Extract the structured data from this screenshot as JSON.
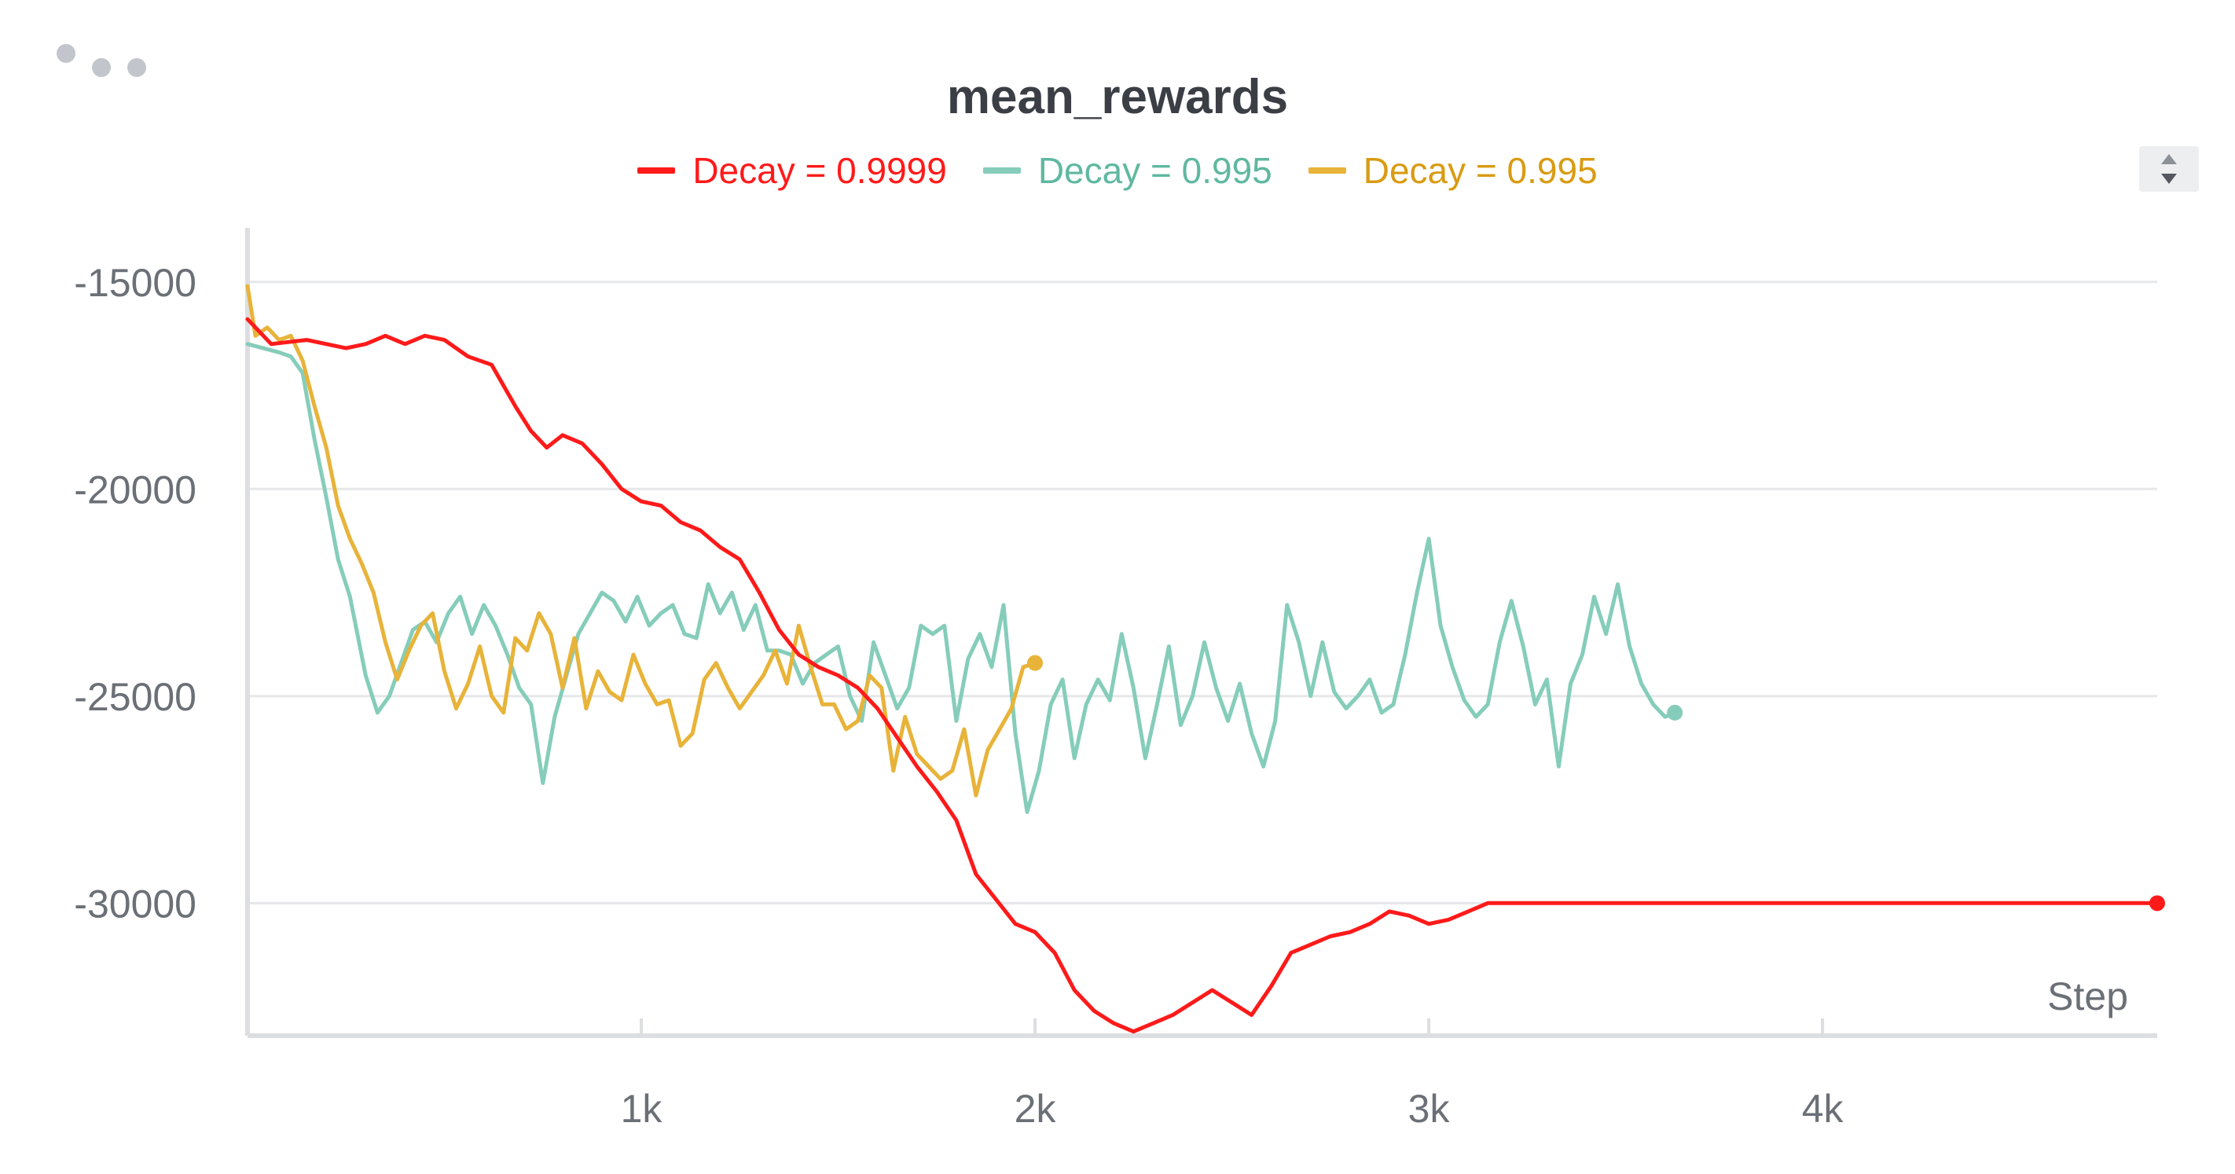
{
  "panel": {
    "title": "mean_rewards",
    "menu_icon": "more-dots-icon",
    "sort_icon": "sort-arrows-icon"
  },
  "chart_data": {
    "type": "line",
    "title": "mean_rewards",
    "xlabel": "Step",
    "ylabel": "",
    "xlim": [
      0,
      4850
    ],
    "ylim": [
      -33200,
      -13600
    ],
    "xticks": [
      1000,
      2000,
      3000,
      4000
    ],
    "xtick_labels": [
      "1k",
      "2k",
      "3k",
      "4k"
    ],
    "yticks": [
      -15000,
      -20000,
      -25000,
      -30000
    ],
    "ytick_labels": [
      "-15000",
      "-20000",
      "-25000",
      "-30000"
    ],
    "grid": true,
    "legend_position": "top-center",
    "series": [
      {
        "name": "Decay = 0.9999",
        "color": "#ff1a1a",
        "x": [
          0,
          60,
          150,
          250,
          300,
          350,
          400,
          450,
          500,
          560,
          620,
          680,
          720,
          760,
          800,
          850,
          900,
          950,
          1000,
          1050,
          1100,
          1150,
          1200,
          1250,
          1300,
          1350,
          1400,
          1450,
          1500,
          1550,
          1600,
          1650,
          1700,
          1750,
          1800,
          1850,
          1900,
          1950,
          2000,
          2050,
          2100,
          2150,
          2200,
          2250,
          2300,
          2350,
          2400,
          2450,
          2500,
          2550,
          2600,
          2650,
          2700,
          2750,
          2800,
          2850,
          2900,
          2950,
          3000,
          3050,
          3100,
          3150,
          3200,
          3300,
          3500,
          4000,
          4500,
          4850
        ],
        "y": [
          -15900,
          -16500,
          -16400,
          -16600,
          -16500,
          -16300,
          -16500,
          -16300,
          -16400,
          -16800,
          -17000,
          -18000,
          -18600,
          -19000,
          -18700,
          -18900,
          -19400,
          -20000,
          -20300,
          -20400,
          -20800,
          -21000,
          -21400,
          -21700,
          -22500,
          -23400,
          -24000,
          -24300,
          -24500,
          -24800,
          -25300,
          -26000,
          -26700,
          -27300,
          -28000,
          -29300,
          -29900,
          -30500,
          -30700,
          -31200,
          -32100,
          -32600,
          -32900,
          -33100,
          -32900,
          -32700,
          -32400,
          -32100,
          -32400,
          -32700,
          -32000,
          -31200,
          -31000,
          -30800,
          -30700,
          -30500,
          -30200,
          -30300,
          -30500,
          -30400,
          -30200,
          -30000,
          -30000,
          -30000,
          -30000,
          -30000,
          -30000,
          -30000
        ]
      },
      {
        "name": "Decay = 0.995",
        "color": "#85cdba",
        "x": [
          0,
          40,
          80,
          110,
          140,
          170,
          200,
          230,
          260,
          300,
          330,
          360,
          390,
          420,
          450,
          480,
          510,
          540,
          570,
          600,
          630,
          660,
          690,
          720,
          750,
          780,
          810,
          840,
          870,
          900,
          930,
          960,
          990,
          1020,
          1050,
          1080,
          1110,
          1140,
          1170,
          1200,
          1230,
          1260,
          1290,
          1320,
          1350,
          1380,
          1410,
          1440,
          1470,
          1500,
          1530,
          1560,
          1590,
          1620,
          1650,
          1680,
          1710,
          1740,
          1770,
          1800,
          1830,
          1860,
          1890,
          1920,
          1950,
          1980,
          2010,
          2040,
          2070,
          2100,
          2130,
          2160,
          2190,
          2220,
          2250,
          2280,
          2310,
          2340,
          2370,
          2400,
          2430,
          2460,
          2490,
          2520,
          2550,
          2580,
          2610,
          2640,
          2670,
          2700,
          2730,
          2760,
          2790,
          2820,
          2850,
          2880,
          2910,
          2940,
          2970,
          3000,
          3030,
          3060,
          3090,
          3120,
          3150,
          3180,
          3210,
          3240,
          3270,
          3300,
          3330,
          3360,
          3390,
          3420,
          3450,
          3480,
          3510,
          3540,
          3570,
          3600,
          3625
        ],
        "y": [
          -16500,
          -16600,
          -16700,
          -16800,
          -17200,
          -18800,
          -20200,
          -21700,
          -22600,
          -24500,
          -25400,
          -25000,
          -24200,
          -23400,
          -23200,
          -23700,
          -23000,
          -22600,
          -23500,
          -22800,
          -23300,
          -24000,
          -24800,
          -25200,
          -27100,
          -25500,
          -24500,
          -23500,
          -23000,
          -22500,
          -22700,
          -23200,
          -22600,
          -23300,
          -23000,
          -22800,
          -23500,
          -23600,
          -22300,
          -23000,
          -22500,
          -23400,
          -22800,
          -23900,
          -23900,
          -24000,
          -24700,
          -24200,
          -24000,
          -23800,
          -25000,
          -25600,
          -23700,
          -24500,
          -25300,
          -24800,
          -23300,
          -23500,
          -23300,
          -25600,
          -24100,
          -23500,
          -24300,
          -22800,
          -25900,
          -27800,
          -26800,
          -25200,
          -24600,
          -26500,
          -25200,
          -24600,
          -25100,
          -23500,
          -24800,
          -26500,
          -25200,
          -23800,
          -25700,
          -25000,
          -23700,
          -24800,
          -25600,
          -24700,
          -25900,
          -26700,
          -25600,
          -22800,
          -23700,
          -25000,
          -23700,
          -24900,
          -25300,
          -25000,
          -24600,
          -25400,
          -25200,
          -24000,
          -22500,
          -21200,
          -23300,
          -24300,
          -25100,
          -25500,
          -25200,
          -23700,
          -22700,
          -23800,
          -25200,
          -24600,
          -26700,
          -24700,
          -24000,
          -22600,
          -23500,
          -22300,
          -23800,
          -24700,
          -25200,
          -25500,
          -25400
        ]
      },
      {
        "name": "Decay = 0.995",
        "color": "#e8b339",
        "x": [
          0,
          20,
          50,
          80,
          110,
          140,
          170,
          200,
          230,
          260,
          290,
          320,
          350,
          380,
          410,
          440,
          470,
          500,
          530,
          560,
          590,
          620,
          650,
          680,
          710,
          740,
          770,
          800,
          830,
          860,
          890,
          920,
          950,
          980,
          1010,
          1040,
          1070,
          1100,
          1130,
          1160,
          1190,
          1220,
          1250,
          1280,
          1310,
          1340,
          1370,
          1400,
          1430,
          1460,
          1490,
          1520,
          1550,
          1580,
          1610,
          1640,
          1670,
          1700,
          1730,
          1760,
          1790,
          1820,
          1850,
          1880,
          1910,
          1940,
          1970,
          2000
        ],
        "y": [
          -15100,
          -16300,
          -16100,
          -16400,
          -16300,
          -16900,
          -18000,
          -19000,
          -20400,
          -21200,
          -21800,
          -22500,
          -23700,
          -24600,
          -23900,
          -23300,
          -23000,
          -24400,
          -25300,
          -24700,
          -23800,
          -25000,
          -25400,
          -23600,
          -23900,
          -23000,
          -23500,
          -24800,
          -23600,
          -25300,
          -24400,
          -24900,
          -25100,
          -24000,
          -24700,
          -25200,
          -25100,
          -26200,
          -25900,
          -24600,
          -24200,
          -24800,
          -25300,
          -24900,
          -24500,
          -23900,
          -24700,
          -23300,
          -24300,
          -25200,
          -25200,
          -25800,
          -25600,
          -24500,
          -24800,
          -26800,
          -25500,
          -26400,
          -26700,
          -27000,
          -26800,
          -25800,
          -27400,
          -26300,
          -25800,
          -25300,
          -24300,
          -24200
        ]
      }
    ]
  }
}
